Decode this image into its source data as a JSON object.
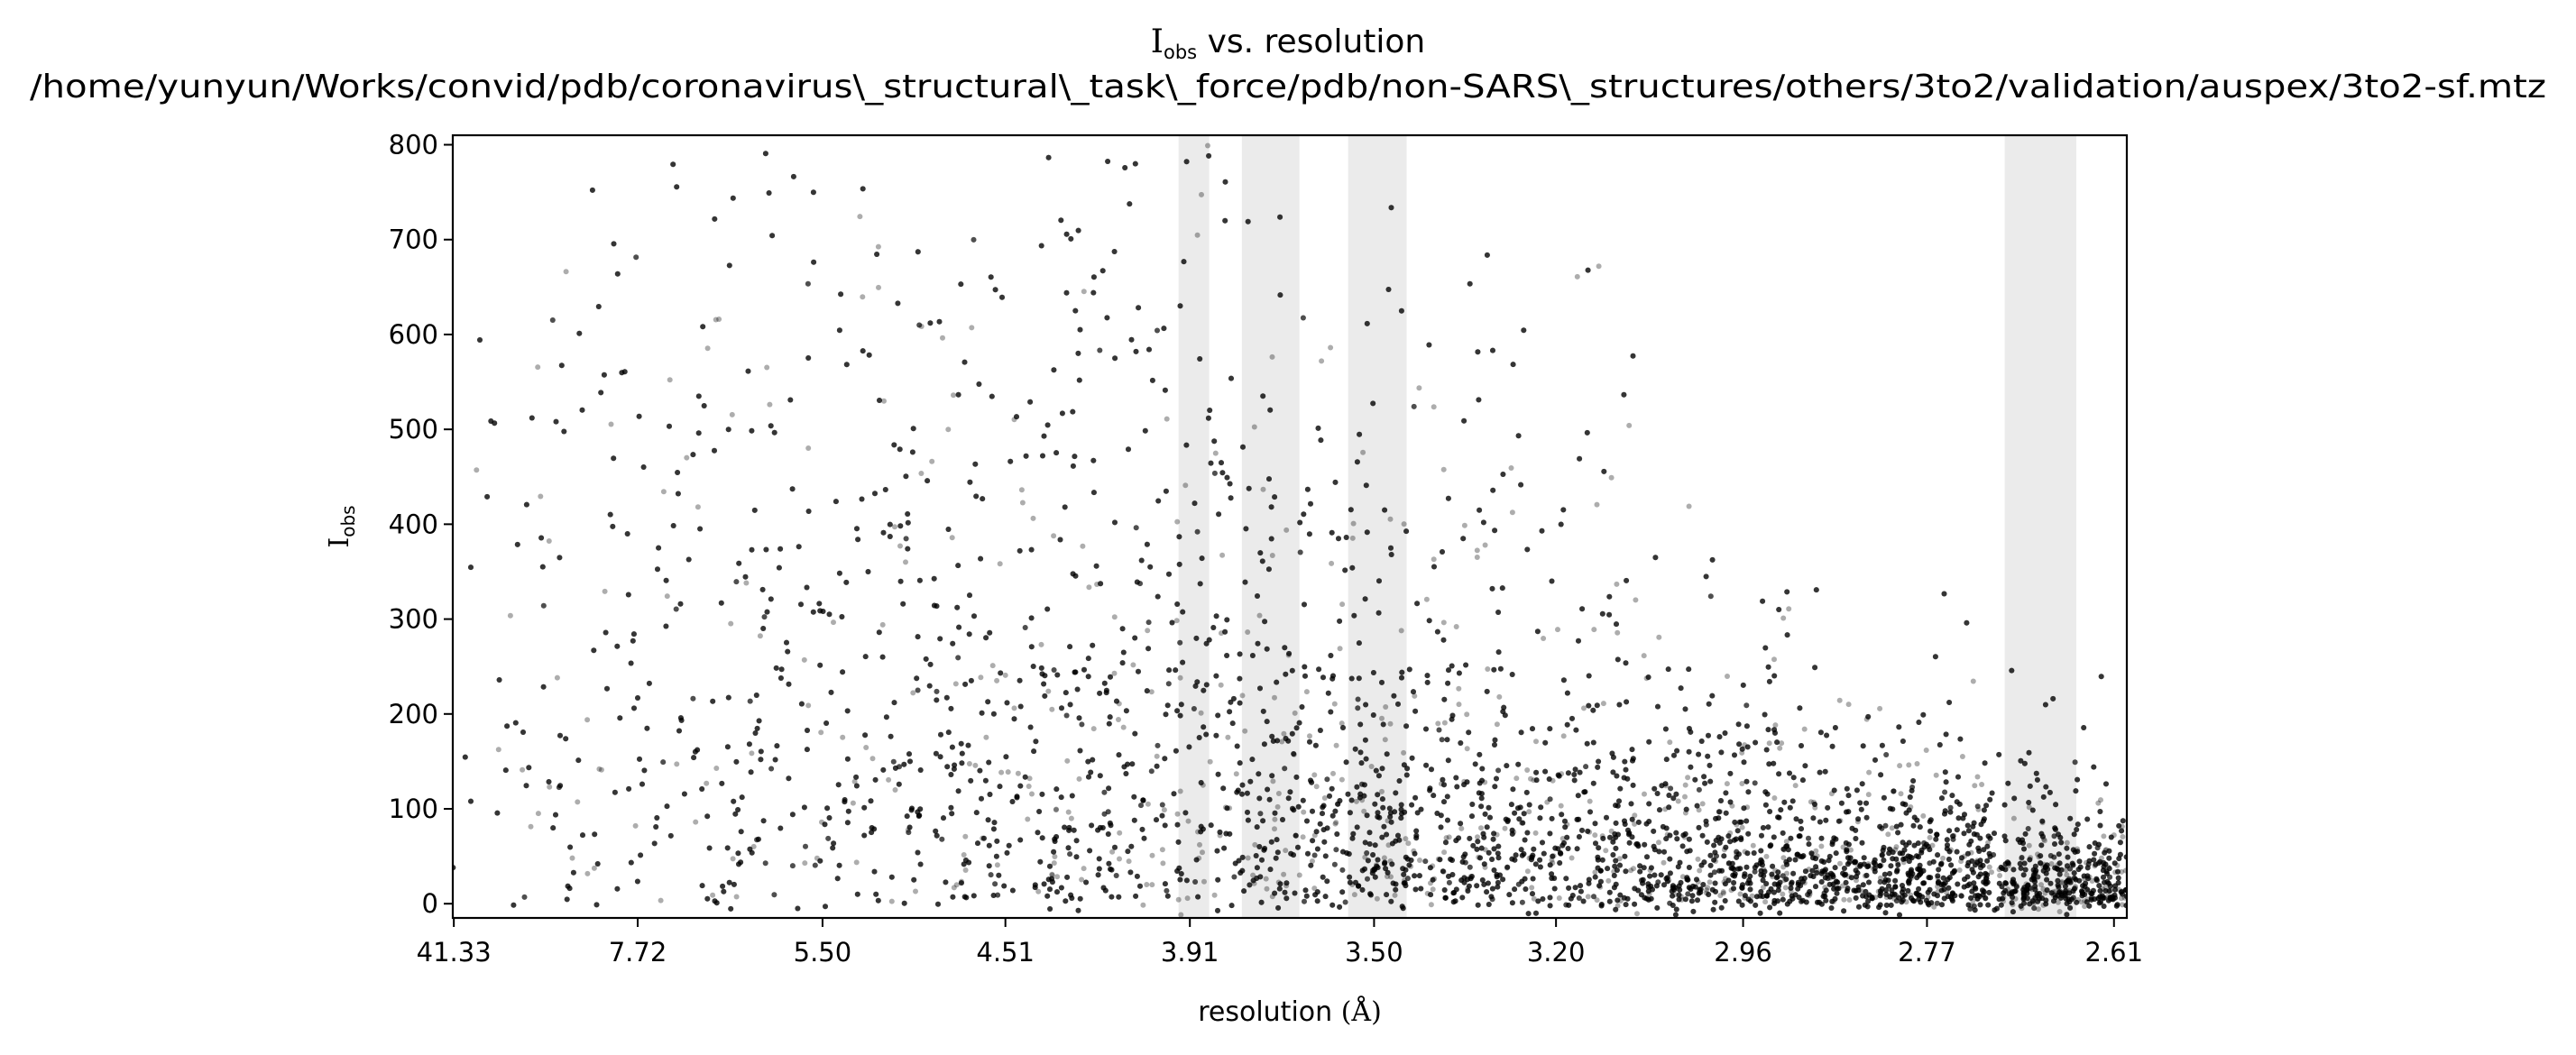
{
  "chart_data": {
    "type": "scatter",
    "title": {
      "symbol": "I",
      "subscript": "obs",
      "rest": " vs. resolution"
    },
    "subtitle": "/home/yunyun/Works/convid/pdb/coronavirus\\_structural\\_task\\_force/pdb/non-SARS\\_structures/others/3to2/validation/auspex/3to2-sf.mtz",
    "xlabel": {
      "text": "resolution",
      "unit": "(Å)"
    },
    "ylabel": {
      "symbol": "I",
      "subscript": "obs"
    },
    "x_scale": "inverse-square (1/d²)",
    "x_ticks": [
      {
        "label": "41.33",
        "value": 41.33
      },
      {
        "label": "7.72",
        "value": 7.72
      },
      {
        "label": "5.50",
        "value": 5.5
      },
      {
        "label": "4.51",
        "value": 4.51
      },
      {
        "label": "3.91",
        "value": 3.91
      },
      {
        "label": "3.50",
        "value": 3.5
      },
      {
        "label": "3.20",
        "value": 3.2
      },
      {
        "label": "2.96",
        "value": 2.96
      },
      {
        "label": "2.77",
        "value": 2.77
      },
      {
        "label": "2.61",
        "value": 2.61
      }
    ],
    "y_ticks": [
      0,
      100,
      200,
      300,
      400,
      500,
      600,
      700,
      800
    ],
    "ylim": [
      -15,
      810
    ],
    "xlim_resolution": [
      45.0,
      2.6
    ],
    "ice_ring_bands_resolution": [
      [
        3.94,
        3.86
      ],
      [
        3.78,
        3.65
      ],
      [
        3.55,
        3.44
      ],
      [
        2.7,
        2.64
      ]
    ],
    "point_color": "#000000",
    "band_color": "#ebebeb",
    "grid": false,
    "legend": "none"
  }
}
